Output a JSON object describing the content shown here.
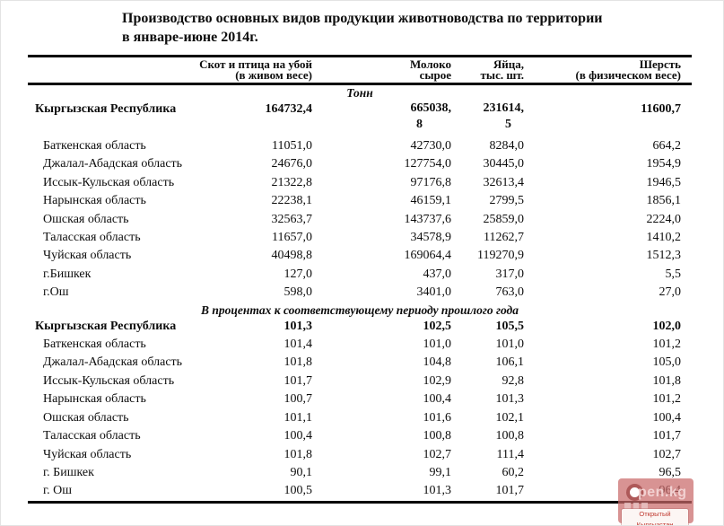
{
  "title": {
    "line1": "Производство основных видов продукции животноводства по территории",
    "line2": "в январе-июне 2014г."
  },
  "columns": [
    {
      "line1": "Скот и птица на убой",
      "line2": "(в живом весе)"
    },
    {
      "line1": "Молоко",
      "line2": "сырое"
    },
    {
      "line1": "Яйца,",
      "line2": "тыс. шт."
    },
    {
      "line1": "Шерсть",
      "line2": "(в физическом весе)"
    }
  ],
  "sections": [
    {
      "label": "Тонн",
      "rows": [
        {
          "name": "Кыргызская Республика",
          "bold": true,
          "values": [
            "164732,4",
            "665038,\n8",
            "231614,\n5",
            "11600,7"
          ]
        },
        {
          "name": "Баткенская область",
          "bold": false,
          "values": [
            "11051,0",
            "42730,0",
            "8284,0",
            "664,2"
          ]
        },
        {
          "name": "Джалал-Абадская область",
          "bold": false,
          "values": [
            "24676,0",
            "127754,0",
            "30445,0",
            "1954,9"
          ]
        },
        {
          "name": "Иссык-Кульская область",
          "bold": false,
          "values": [
            "21322,8",
            "97176,8",
            "32613,4",
            "1946,5"
          ]
        },
        {
          "name": "Нарынская область",
          "bold": false,
          "values": [
            "22238,1",
            "46159,1",
            "2799,5",
            "1856,1"
          ]
        },
        {
          "name": "Ошская область",
          "bold": false,
          "values": [
            "32563,7",
            "143737,6",
            "25859,0",
            "2224,0"
          ]
        },
        {
          "name": "Таласская область",
          "bold": false,
          "values": [
            "11657,0",
            "34578,9",
            "11262,7",
            "1410,2"
          ]
        },
        {
          "name": "Чуйская область",
          "bold": false,
          "values": [
            "40498,8",
            "169064,4",
            "119270,9",
            "1512,3"
          ]
        },
        {
          "name": "г.Бишкек",
          "bold": false,
          "values": [
            "127,0",
            "437,0",
            "317,0",
            "5,5"
          ]
        },
        {
          "name": "г.Ош",
          "bold": false,
          "values": [
            "598,0",
            "3401,0",
            "763,0",
            "27,0"
          ]
        }
      ]
    },
    {
      "label": "В процентах к соответствующему периоду прошлого года",
      "rows": [
        {
          "name": "Кыргызская Республика",
          "bold": true,
          "values": [
            "101,3",
            "102,5",
            "105,5",
            "102,0"
          ]
        },
        {
          "name": "Баткенская область",
          "bold": false,
          "values": [
            "101,4",
            "101,0",
            "101,0",
            "101,2"
          ]
        },
        {
          "name": "Джалал-Абадская область",
          "bold": false,
          "values": [
            "101,8",
            "104,8",
            "106,1",
            "105,0"
          ]
        },
        {
          "name": "Иссык-Кульская область",
          "bold": false,
          "values": [
            "101,7",
            "102,9",
            "92,8",
            "101,8"
          ]
        },
        {
          "name": "Нарынская область",
          "bold": false,
          "values": [
            "100,7",
            "100,4",
            "101,3",
            "101,2"
          ]
        },
        {
          "name": "Ошская область",
          "bold": false,
          "values": [
            "101,1",
            "101,6",
            "102,1",
            "100,4"
          ]
        },
        {
          "name": "Таласская область",
          "bold": false,
          "values": [
            "100,4",
            "100,8",
            "100,8",
            "101,7"
          ]
        },
        {
          "name": "Чуйская область",
          "bold": false,
          "values": [
            "101,8",
            "102,7",
            "111,4",
            "102,7"
          ]
        },
        {
          "name": "г. Бишкек",
          "bold": false,
          "values": [
            "90,1",
            "99,1",
            "60,2",
            "96,5"
          ]
        },
        {
          "name": "г. Ош",
          "bold": false,
          "values": [
            "100,5",
            "101,3",
            "101,7",
            "96,4"
          ]
        }
      ]
    }
  ],
  "watermark": {
    "brand": "pen.kg",
    "caption": "Открытый Кыргызстан",
    "box_color": "#c96a6a",
    "caption_color": "#c03a30"
  }
}
